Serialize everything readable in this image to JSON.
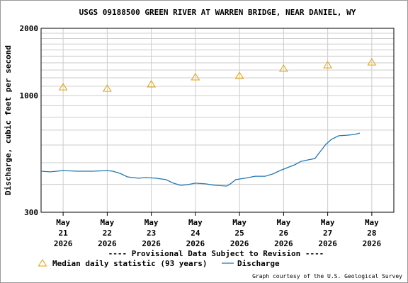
{
  "chart_data": {
    "type": "line",
    "title": "USGS 09188500 GREEN RIVER AT WARREN BRIDGE, NEAR DANIEL, WY",
    "y_label": "Discharge, cubic feet per second",
    "ylog": true,
    "ylim": [
      300,
      2000
    ],
    "yticks": [
      300,
      1000,
      2000
    ],
    "y_minor_grid": [
      400,
      500,
      600,
      700,
      800,
      900,
      1100,
      1200,
      1300,
      1400,
      1500,
      1600,
      1700,
      1800,
      1900
    ],
    "xlim": [
      "2026-05-20T12:00",
      "2026-05-28T12:00"
    ],
    "xticks": [
      {
        "value": "2026-05-21T00:00",
        "label": [
          "May",
          "21",
          "2026"
        ]
      },
      {
        "value": "2026-05-22T00:00",
        "label": [
          "May",
          "22",
          "2026"
        ]
      },
      {
        "value": "2026-05-23T00:00",
        "label": [
          "May",
          "23",
          "2026"
        ]
      },
      {
        "value": "2026-05-24T00:00",
        "label": [
          "May",
          "24",
          "2026"
        ]
      },
      {
        "value": "2026-05-25T00:00",
        "label": [
          "May",
          "25",
          "2026"
        ]
      },
      {
        "value": "2026-05-26T00:00",
        "label": [
          "May",
          "26",
          "2026"
        ]
      },
      {
        "value": "2026-05-27T00:00",
        "label": [
          "May",
          "27",
          "2026"
        ]
      },
      {
        "value": "2026-05-28T00:00",
        "label": [
          "May",
          "28",
          "2026"
        ]
      }
    ],
    "grid": true,
    "note": "---- Provisional Data Subject to Revision ----",
    "note_color": "#e00000",
    "credit": "Graph courtesy of the U.S. Geological Survey",
    "series": [
      {
        "name": "Median daily statistic (93 years)",
        "type": "scatter",
        "color": "#e8a000",
        "x": [
          "2026-05-21T00:00",
          "2026-05-22T00:00",
          "2026-05-23T00:00",
          "2026-05-24T00:00",
          "2026-05-25T00:00",
          "2026-05-26T00:00",
          "2026-05-27T00:00",
          "2026-05-28T00:00"
        ],
        "values": [
          1090,
          1075,
          1124,
          1209,
          1226,
          1319,
          1368,
          1409
        ]
      },
      {
        "name": "Discharge",
        "type": "line",
        "color": "#1f77b4",
        "x": [
          "2026-05-20T12:00",
          "2026-05-20T17:00",
          "2026-05-21T00:00",
          "2026-05-21T08:00",
          "2026-05-21T16:00",
          "2026-05-22T00:00",
          "2026-05-22T03:00",
          "2026-05-22T07:00",
          "2026-05-22T11:00",
          "2026-05-22T17:00",
          "2026-05-22T21:00",
          "2026-05-23T02:30",
          "2026-05-23T08:00",
          "2026-05-23T12:00",
          "2026-05-23T16:00",
          "2026-05-23T20:00",
          "2026-05-24T00:00",
          "2026-05-24T05:30",
          "2026-05-24T11:00",
          "2026-05-24T17:00",
          "2026-05-24T19:00",
          "2026-05-24T22:00",
          "2026-05-25T03:00",
          "2026-05-25T08:30",
          "2026-05-25T14:00",
          "2026-05-25T18:00",
          "2026-05-25T22:00",
          "2026-05-26T02:00",
          "2026-05-26T06:00",
          "2026-05-26T09:30",
          "2026-05-26T13:30",
          "2026-05-26T17:00",
          "2026-05-26T20:00",
          "2026-05-26T23:00",
          "2026-05-27T02:00",
          "2026-05-27T06:00",
          "2026-05-27T10:30",
          "2026-05-27T14:30",
          "2026-05-27T17:30"
        ],
        "values": [
          458,
          455,
          461,
          458,
          458,
          461,
          458,
          448,
          432,
          426,
          429,
          426,
          420,
          405,
          396,
          399,
          405,
          402,
          396,
          393,
          402,
          420,
          426,
          435,
          435,
          445,
          461,
          475,
          489,
          507,
          515,
          522,
          562,
          604,
          636,
          660,
          664,
          669,
          679
        ]
      }
    ]
  }
}
